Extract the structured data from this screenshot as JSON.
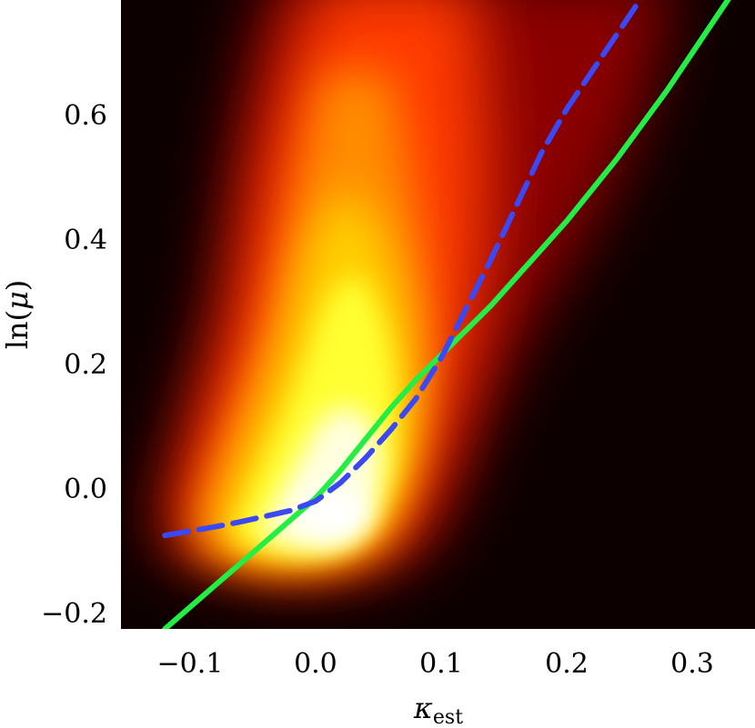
{
  "chart_data": {
    "type": "heatmap",
    "title": "",
    "xlabel": {
      "symbol": "κ",
      "subscript": "est"
    },
    "ylabel": {
      "prefix": "ln(",
      "symbol": "μ",
      "suffix": ")"
    },
    "xlim": [
      -0.155,
      0.35
    ],
    "ylim": [
      -0.225,
      0.785
    ],
    "x_ticks": [
      {
        "value": -0.1,
        "label": "−0.1"
      },
      {
        "value": 0.0,
        "label": "0.0"
      },
      {
        "value": 0.1,
        "label": "0.1"
      },
      {
        "value": 0.2,
        "label": "0.2"
      },
      {
        "value": 0.3,
        "label": "0.3"
      }
    ],
    "y_ticks": [
      {
        "value": -0.2,
        "label": "−0.2"
      },
      {
        "value": 0.0,
        "label": "0.0"
      },
      {
        "value": 0.2,
        "label": "0.2"
      },
      {
        "value": 0.4,
        "label": "0.4"
      },
      {
        "value": 0.6,
        "label": "0.6"
      }
    ],
    "grid": false,
    "colormap": [
      "#0d0000",
      "#3a0000",
      "#8a0000",
      "#d40000",
      "#ff3b00",
      "#ff8c00",
      "#ffd000",
      "#ffff30",
      "#ffffe0",
      "#ffffff"
    ],
    "density_peak": {
      "x": 0.0,
      "y": -0.04
    },
    "series": [
      {
        "style": "solid",
        "color": "#22ee44",
        "x": [
          -0.12,
          -0.1,
          -0.08,
          -0.06,
          -0.04,
          -0.02,
          0.0,
          0.02,
          0.04,
          0.06,
          0.08,
          0.1,
          0.12,
          0.14,
          0.16,
          0.18,
          0.2,
          0.22,
          0.24,
          0.26,
          0.28,
          0.3,
          0.32,
          0.33
        ],
        "y": [
          -0.225,
          -0.19,
          -0.155,
          -0.12,
          -0.085,
          -0.05,
          -0.015,
          0.03,
          0.08,
          0.13,
          0.175,
          0.215,
          0.255,
          0.295,
          0.34,
          0.385,
          0.43,
          0.48,
          0.53,
          0.585,
          0.64,
          0.7,
          0.76,
          0.79
        ]
      },
      {
        "style": "dashed",
        "color": "#3a48f5",
        "x": [
          -0.12,
          -0.1,
          -0.08,
          -0.06,
          -0.04,
          -0.02,
          0.0,
          0.02,
          0.04,
          0.06,
          0.08,
          0.1,
          0.12,
          0.14,
          0.16,
          0.18,
          0.2,
          0.22,
          0.24,
          0.26
        ],
        "y": [
          -0.075,
          -0.068,
          -0.061,
          -0.053,
          -0.044,
          -0.035,
          -0.02,
          0.01,
          0.05,
          0.095,
          0.145,
          0.21,
          0.29,
          0.37,
          0.455,
          0.54,
          0.61,
          0.67,
          0.73,
          0.79
        ]
      }
    ]
  }
}
